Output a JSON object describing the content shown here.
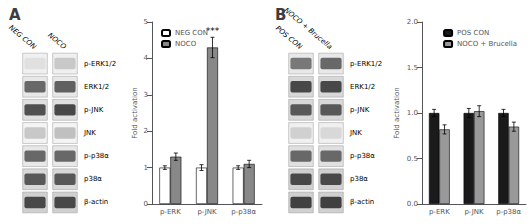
{
  "chart_data": [
    {
      "type": "blot",
      "title": "A",
      "categories": [
        "NEG CON",
        "NOCO"
      ],
      "series": [
        {
          "name": "p-ERK1/2",
          "color": "#f0f0f0",
          "colors": [
            "#e0e0e0",
            "#c8c8c8"
          ]
        },
        {
          "name": "ERK1/2",
          "color": "#e8e8e8",
          "colors": [
            "#686868",
            "#606060"
          ]
        },
        {
          "name": "p-JNK",
          "color": "#e0e0e0",
          "colors": [
            "#505050",
            "#484848"
          ]
        },
        {
          "name": "JNK",
          "color": "#f4f4f4",
          "colors": [
            "#c8c8c8",
            "#c0c0c0"
          ]
        },
        {
          "name": "p-p38α",
          "color": "#e8e8e8",
          "colors": [
            "#686868",
            "#686868"
          ]
        },
        {
          "name": "p38α",
          "color": "#d8d8d8",
          "colors": [
            "#585858",
            "#585858"
          ]
        },
        {
          "name": "β-actin",
          "color": "#d0d0d0",
          "colors": [
            "#484848",
            "#484848"
          ]
        }
      ]
    },
    {
      "type": "bar",
      "categories": [
        "p-ERK",
        "p-JNK",
        "p-p38α"
      ],
      "ylabel": "Fold activation",
      "ylim": [
        0,
        5
      ],
      "yticks": [
        0,
        1,
        2,
        3,
        4,
        5
      ],
      "legend": "upper left",
      "series": [
        {
          "name": "NEG CON",
          "color": "#ffffff",
          "values": [
            1.0,
            1.0,
            1.0
          ],
          "errors": [
            0.05,
            0.08,
            0.05
          ]
        },
        {
          "name": "NOCO",
          "color": "#888888",
          "values": [
            1.3,
            4.3,
            1.1
          ],
          "errors": [
            0.1,
            0.28,
            0.1
          ]
        }
      ],
      "annotations": [
        {
          "text": "***",
          "category": "p-JNK",
          "series": "NOCO"
        }
      ]
    },
    {
      "type": "blot",
      "title": "B",
      "categories": [
        "POS CON",
        "NOCO + Brucella"
      ],
      "series": [
        {
          "name": "p-ERK1/2",
          "color": "#e8e8e8",
          "colors": [
            "#787878",
            "#686868"
          ]
        },
        {
          "name": "ERK1/2",
          "color": "#d8d8d8",
          "colors": [
            "#484848",
            "#484848"
          ]
        },
        {
          "name": "p-JNK",
          "color": "#d8d8d8",
          "colors": [
            "#585858",
            "#585858"
          ]
        },
        {
          "name": "JNK",
          "color": "#f0f0f0",
          "colors": [
            "#d0d0d0",
            "#d8d8d8"
          ]
        },
        {
          "name": "p-p38α",
          "color": "#e0e0e0",
          "colors": [
            "#686868",
            "#686868"
          ]
        },
        {
          "name": "p38α",
          "color": "#d0d0d0",
          "colors": [
            "#484848",
            "#484848"
          ]
        },
        {
          "name": "β-actin",
          "color": "#d0d0d0",
          "colors": [
            "#404040",
            "#404040"
          ]
        }
      ]
    },
    {
      "type": "bar",
      "categories": [
        "p-ERK",
        "p-JNK",
        "p-p38α"
      ],
      "ylabel": "Fold activation",
      "ylim": [
        0,
        2.0
      ],
      "yticks": [
        {
          "value": 0.0,
          "label": "0.0"
        },
        0.5,
        {
          "value": 1.0,
          "label": "1.0"
        },
        1.5,
        {
          "value": 2.0,
          "label": "2.0"
        }
      ],
      "legend": "upper right",
      "series": [
        {
          "name": "POS CON",
          "color": "#1a1a1a",
          "values": [
            1.0,
            1.0,
            1.0
          ],
          "errors": [
            0.04,
            0.05,
            0.04
          ]
        },
        {
          "name": "NOCO + Brucella",
          "color": "#999999",
          "values": [
            0.82,
            1.02,
            0.85
          ],
          "errors": [
            0.05,
            0.06,
            0.05
          ]
        }
      ]
    }
  ]
}
